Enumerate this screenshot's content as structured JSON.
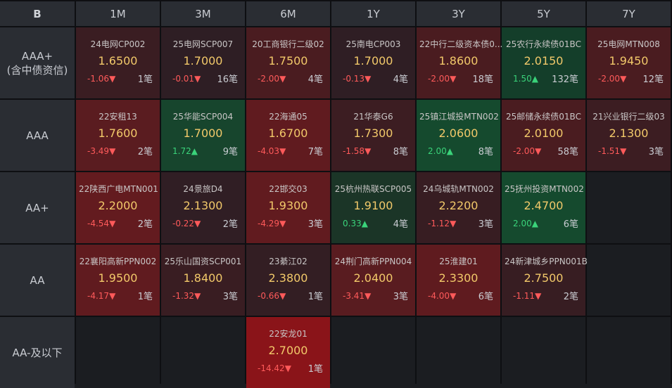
{
  "corner_label": "B",
  "tenors": [
    "1M",
    "3M",
    "6M",
    "1Y",
    "3Y",
    "5Y",
    "7Y"
  ],
  "rows": [
    {
      "label": [
        "AAA+",
        "(含中债资信)"
      ],
      "cells": [
        {
          "bond": "24电网CP002",
          "yield": "1.6500",
          "change": "-1.06",
          "dir": "down",
          "count": "1笔",
          "bg": "#3a1d22"
        },
        {
          "bond": "25电网SCP007",
          "yield": "1.7000",
          "change": "-0.01",
          "dir": "down",
          "count": "16笔",
          "bg": "#2e1e24"
        },
        {
          "bond": "20工商银行二级02",
          "yield": "1.7500",
          "change": "-2.00",
          "dir": "down",
          "count": "4笔",
          "bg": "#4a1c20"
        },
        {
          "bond": "25南电CP003",
          "yield": "1.7000",
          "change": "-0.13",
          "dir": "down",
          "count": "4笔",
          "bg": "#2f1e24"
        },
        {
          "bond": "22中行二级资本债0...",
          "yield": "1.8600",
          "change": "-2.00",
          "dir": "down",
          "count": "18笔",
          "bg": "#4a1c20"
        },
        {
          "bond": "25农行永续债01BC",
          "yield": "2.0150",
          "change": "1.50",
          "dir": "up",
          "count": "132笔",
          "bg": "#143e2a"
        },
        {
          "bond": "25电网MTN008",
          "yield": "1.9450",
          "change": "-2.00",
          "dir": "down",
          "count": "12笔",
          "bg": "#4a1c20"
        }
      ]
    },
    {
      "label": [
        "AAA"
      ],
      "cells": [
        {
          "bond": "22安租13",
          "yield": "1.7600",
          "change": "-3.49",
          "dir": "down",
          "count": "2笔",
          "bg": "#5a1c20"
        },
        {
          "bond": "25华能SCP004",
          "yield": "1.7000",
          "change": "1.72",
          "dir": "up",
          "count": "9笔",
          "bg": "#17452d"
        },
        {
          "bond": "22海通05",
          "yield": "1.6700",
          "change": "-4.03",
          "dir": "down",
          "count": "7笔",
          "bg": "#601b1f"
        },
        {
          "bond": "21华泰G6",
          "yield": "1.7300",
          "change": "-1.58",
          "dir": "down",
          "count": "8笔",
          "bg": "#3c1d22"
        },
        {
          "bond": "25镇江城投MTN002",
          "yield": "2.0600",
          "change": "2.00",
          "dir": "up",
          "count": "8笔",
          "bg": "#154a2e"
        },
        {
          "bond": "25邮储永续债01BC",
          "yield": "2.0100",
          "change": "-2.00",
          "dir": "down",
          "count": "58笔",
          "bg": "#4a1c20"
        },
        {
          "bond": "21兴业银行二级03",
          "yield": "2.1300",
          "change": "-1.51",
          "dir": "down",
          "count": "3笔",
          "bg": "#3c1d22"
        }
      ]
    },
    {
      "label": [
        "AA+"
      ],
      "cells": [
        {
          "bond": "22陕西广电MTN001",
          "yield": "2.2000",
          "change": "-4.54",
          "dir": "down",
          "count": "2笔",
          "bg": "#631b1f"
        },
        {
          "bond": "24景旅D4",
          "yield": "2.1300",
          "change": "-0.22",
          "dir": "down",
          "count": "2笔",
          "bg": "#301e24"
        },
        {
          "bond": "22邯交03",
          "yield": "1.9300",
          "change": "-4.29",
          "dir": "down",
          "count": "3笔",
          "bg": "#611b1f"
        },
        {
          "bond": "25杭州热联SCP005",
          "yield": "1.9100",
          "change": "0.33",
          "dir": "up",
          "count": "4笔",
          "bg": "#1b3527"
        },
        {
          "bond": "24乌城轨MTN002",
          "yield": "2.2200",
          "change": "-1.12",
          "dir": "down",
          "count": "3笔",
          "bg": "#371d22"
        },
        {
          "bond": "25抚州投资MTN002",
          "yield": "2.4700",
          "change": "2.00",
          "dir": "up",
          "count": "6笔",
          "bg": "#154a2e"
        },
        null
      ]
    },
    {
      "label": [
        "AA"
      ],
      "cells": [
        {
          "bond": "22襄阳高新PPN002",
          "yield": "1.9500",
          "change": "-4.17",
          "dir": "down",
          "count": "1笔",
          "bg": "#601b1f"
        },
        {
          "bond": "25乐山国资SCP001",
          "yield": "1.8400",
          "change": "-1.32",
          "dir": "down",
          "count": "3笔",
          "bg": "#391d22"
        },
        {
          "bond": "23綦江02",
          "yield": "2.3800",
          "change": "-0.66",
          "dir": "down",
          "count": "1笔",
          "bg": "#331e23"
        },
        {
          "bond": "24荆门高新PPN004",
          "yield": "2.0400",
          "change": "-3.41",
          "dir": "down",
          "count": "3笔",
          "bg": "#591c20"
        },
        {
          "bond": "25淮建01",
          "yield": "2.3300",
          "change": "-4.00",
          "dir": "down",
          "count": "6笔",
          "bg": "#5f1b1f"
        },
        {
          "bond": "24新津城乡PPN001B",
          "yield": "2.7500",
          "change": "-1.11",
          "dir": "down",
          "count": "2笔",
          "bg": "#371d22"
        },
        null
      ]
    },
    {
      "label": [
        "AA-及以下"
      ],
      "cells": [
        null,
        null,
        {
          "bond": "22安龙01",
          "yield": "2.7000",
          "change": "-14.42",
          "dir": "down",
          "count": "1笔",
          "bg": "#8a1419"
        },
        null,
        null,
        null,
        null
      ]
    }
  ],
  "arrows": {
    "up": "▲",
    "down": "▼"
  }
}
